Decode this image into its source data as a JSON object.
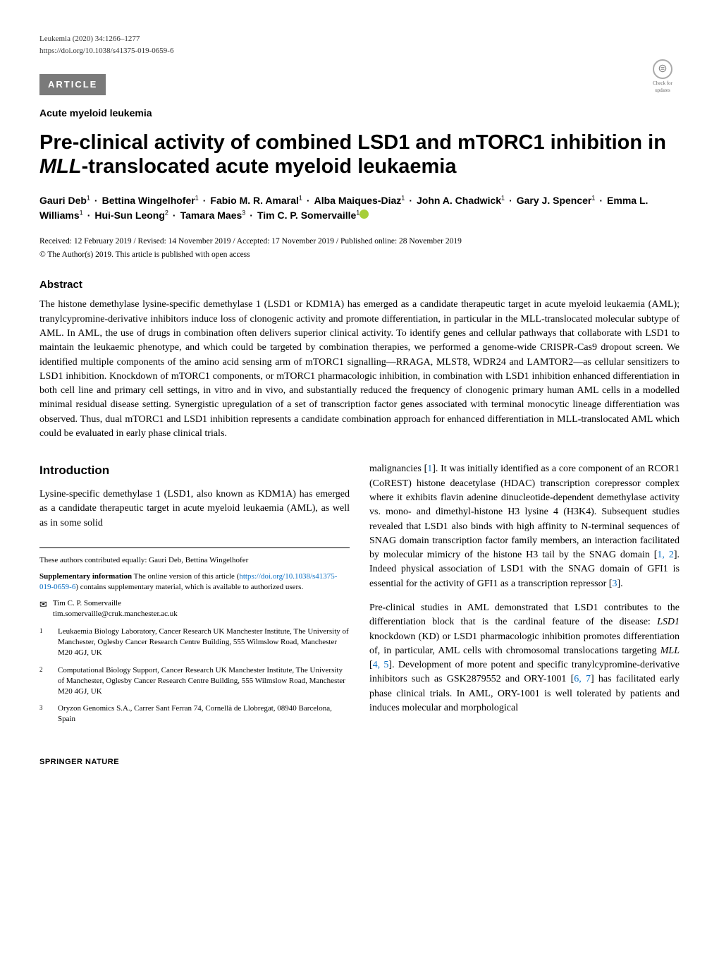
{
  "journal": {
    "citation": "Leukemia (2020) 34:1266–1277",
    "doi": "https://doi.org/10.1038/s41375-019-0659-6"
  },
  "article_type": "ARTICLE",
  "updates_badge": {
    "glyph": "⊜",
    "label": "Check for updates"
  },
  "subject": "Acute myeloid leukemia",
  "title_parts": {
    "pre": "Pre-clinical activity of combined LSD1 and mTORC1 inhibition in ",
    "italic": "MLL",
    "post": "-translocated acute myeloid leukaemia"
  },
  "authors": [
    {
      "name": "Gauri Deb",
      "aff": "1",
      "orcid": false
    },
    {
      "name": "Bettina Wingelhofer",
      "aff": "1",
      "orcid": false
    },
    {
      "name": "Fabio M. R. Amaral",
      "aff": "1",
      "orcid": false
    },
    {
      "name": "Alba Maiques-Diaz",
      "aff": "1",
      "orcid": false
    },
    {
      "name": "John A. Chadwick",
      "aff": "1",
      "orcid": false
    },
    {
      "name": "Gary J. Spencer",
      "aff": "1",
      "orcid": false
    },
    {
      "name": "Emma L. Williams",
      "aff": "1",
      "orcid": false
    },
    {
      "name": "Hui-Sun Leong",
      "aff": "2",
      "orcid": false
    },
    {
      "name": "Tamara Maes",
      "aff": "3",
      "orcid": false
    },
    {
      "name": "Tim C. P. Somervaille",
      "aff": "1",
      "orcid": true
    }
  ],
  "dates": "Received: 12 February 2019 / Revised: 14 November 2019 / Accepted: 17 November 2019 / Published online: 28 November 2019",
  "license": "© The Author(s) 2019. This article is published with open access",
  "abstract": {
    "heading": "Abstract",
    "body": "The histone demethylase lysine-specific demethylase 1 (LSD1 or KDM1A) has emerged as a candidate therapeutic target in acute myeloid leukaemia (AML); tranylcypromine-derivative inhibitors induce loss of clonogenic activity and promote differentiation, in particular in the MLL-translocated molecular subtype of AML. In AML, the use of drugs in combination often delivers superior clinical activity. To identify genes and cellular pathways that collaborate with LSD1 to maintain the leukaemic phenotype, and which could be targeted by combination therapies, we performed a genome-wide CRISPR-Cas9 dropout screen. We identified multiple components of the amino acid sensing arm of mTORC1 signalling—RRAGA, MLST8, WDR24 and LAMTOR2—as cellular sensitizers to LSD1 inhibition. Knockdown of mTORC1 components, or mTORC1 pharmacologic inhibition, in combination with LSD1 inhibition enhanced differentiation in both cell line and primary cell settings, in vitro and in vivo, and substantially reduced the frequency of clonogenic primary human AML cells in a modelled minimal residual disease setting. Synergistic upregulation of a set of transcription factor genes associated with terminal monocytic lineage differentiation was observed. Thus, dual mTORC1 and LSD1 inhibition represents a candidate combination approach for enhanced differentiation in MLL-translocated AML which could be evaluated in early phase clinical trials."
  },
  "intro": {
    "heading": "Introduction",
    "p1": "Lysine-specific demethylase 1 (LSD1, also known as KDM1A) has emerged as a candidate therapeutic target in acute myeloid leukaemia (AML), as well as in some solid",
    "p2_a": "malignancies [",
    "p2_b": "]. It was initially identified as a core component of an RCOR1 (CoREST) histone deacetylase (HDAC) transcription corepressor complex where it exhibits flavin adenine dinucleotide-dependent demethylase activity vs. mono- and dimethyl-histone H3 lysine 4 (H3K4). Subsequent studies revealed that LSD1 also binds with high affinity to N-terminal sequences of SNAG domain transcription factor family members, an interaction facilitated by molecular mimicry of the histone H3 tail by the SNAG domain [",
    "p2_c": "]. Indeed physical association of LSD1 with the SNAG domain of GFI1 is essential for the activity of GFI1 as a transcription repressor [",
    "p2_d": "].",
    "p3_a": "Pre-clinical studies in AML demonstrated that LSD1 contributes to the differentiation block that is the cardinal feature of the disease: ",
    "p3_b": " knockdown (KD) or LSD1 pharmacologic inhibition promotes differentiation of, in particular, AML cells with chromosomal translocations targeting ",
    "p3_c": " [",
    "p3_d": "]. Development of more potent and specific tranylcypromine-derivative inhibitors such as GSK2879552 and ORY-1001 [",
    "p3_e": "] has facilitated early phase clinical trials. In AML, ORY-1001 is well tolerated by patients and induces molecular and morphological",
    "refs": {
      "r1": "1",
      "r12": "1, 2",
      "r3": "3",
      "r45": "4, 5",
      "r67": "6, 7"
    },
    "ital_lsd1": "LSD1",
    "ital_mll": "MLL"
  },
  "footnotes": {
    "equal": "These authors contributed equally: Gauri Deb, Bettina Wingelhofer",
    "supp_label": "Supplementary information",
    "supp_text_a": " The online version of this article (",
    "supp_link": "https://doi.org/10.1038/s41375-019-0659-6",
    "supp_text_b": ") contains supplementary material, which is available to authorized users."
  },
  "correspondence": {
    "icon": "✉",
    "name": "Tim C. P. Somervaille",
    "email": "tim.somervaille@cruk.manchester.ac.uk"
  },
  "affiliations": [
    {
      "n": "1",
      "text": "Leukaemia Biology Laboratory, Cancer Research UK Manchester Institute, The University of Manchester, Oglesby Cancer Research Centre Building, 555 Wilmslow Road, Manchester M20 4GJ, UK"
    },
    {
      "n": "2",
      "text": "Computational Biology Support, Cancer Research UK Manchester Institute, The University of Manchester, Oglesby Cancer Research Centre Building, 555 Wilmslow Road, Manchester M20 4GJ, UK"
    },
    {
      "n": "3",
      "text": "Oryzon Genomics S.A., Carrer Sant Ferran 74, Cornellà de Llobregat, 08940 Barcelona, Spain"
    }
  ],
  "publisher": "SPRINGER NATURE",
  "colors": {
    "banner_bg": "#7a7a7a",
    "banner_fg": "#ffffff",
    "link": "#0b6fc2",
    "orcid": "#a6ce39",
    "text": "#000000",
    "page_bg": "#ffffff"
  }
}
